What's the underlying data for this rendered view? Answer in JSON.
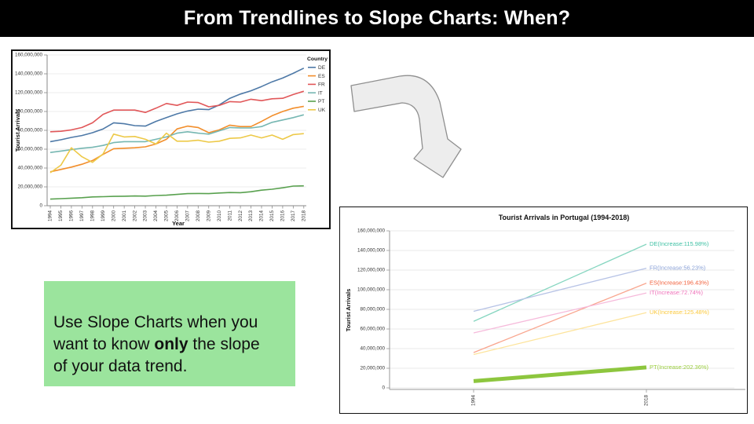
{
  "header": {
    "title": "From Trendlines to Slope Charts: When?",
    "bg_color": "#000000",
    "text_color": "#ffffff"
  },
  "note_box": {
    "text_before": "Use Slope Charts when you\nwant to know ",
    "bold_word": "only",
    "text_after": " the slope\nof your data trend.",
    "bg_color": "#9be49d"
  },
  "arrow": {
    "name": "curved-arrow",
    "fill": "#ededed",
    "stroke": "#8f8f8f"
  },
  "chart_data": [
    {
      "type": "line",
      "title": "",
      "xlabel": "Year",
      "ylabel": "Tourist Arrivals",
      "legend_title": "Country",
      "legend_position": "right",
      "grid": true,
      "ylim": [
        0,
        160000000
      ],
      "ytick_step": 20000000,
      "unit": "millions",
      "x": [
        1994,
        1995,
        1996,
        1997,
        1998,
        1999,
        2000,
        2001,
        2002,
        2003,
        2004,
        2005,
        2006,
        2007,
        2008,
        2009,
        2010,
        2011,
        2012,
        2013,
        2014,
        2015,
        2016,
        2017,
        2018
      ],
      "series": [
        {
          "name": "DE",
          "color": "#4e79a7",
          "values_millions": [
            68,
            70,
            72.5,
            74.5,
            77.5,
            81.5,
            88,
            87,
            85,
            84.5,
            89.5,
            93.5,
            97.5,
            100.5,
            102.5,
            102,
            107,
            114,
            118.5,
            122,
            126.5,
            131.5,
            135.5,
            140.5,
            146
          ]
        },
        {
          "name": "ES",
          "color": "#f28e2b",
          "values_millions": [
            36,
            38.5,
            41,
            44,
            48,
            54.5,
            60.5,
            61,
            61.5,
            62.5,
            65.5,
            70.5,
            81.5,
            84.5,
            83,
            77.5,
            80.5,
            85.5,
            84,
            84,
            89.5,
            95.5,
            100,
            103.5,
            105.5
          ]
        },
        {
          "name": "FR",
          "color": "#e15759",
          "values_millions": [
            78.5,
            79,
            80.5,
            83,
            88,
            97,
            101.5,
            101.5,
            101.5,
            99,
            103.5,
            108.5,
            106.5,
            110,
            109.5,
            105,
            106.5,
            110.5,
            110,
            113,
            111.5,
            113.5,
            114,
            118,
            121.5
          ]
        },
        {
          "name": "IT",
          "color": "#76b7b2",
          "values_millions": [
            56.5,
            58,
            59.5,
            61,
            62,
            64,
            67,
            68,
            68,
            68,
            70.5,
            73,
            77,
            78.5,
            77,
            76,
            79.5,
            83,
            82.5,
            82.5,
            84,
            88.5,
            91,
            93.5,
            96.5
          ]
        },
        {
          "name": "PT",
          "color": "#59a14f",
          "values_millions": [
            7,
            7.5,
            8,
            8.5,
            9.3,
            9.6,
            9.9,
            10.1,
            10.3,
            10.2,
            10.8,
            11.2,
            12,
            12.8,
            13,
            12.8,
            13.5,
            14,
            13.8,
            14.8,
            16.5,
            17.5,
            19,
            20.8,
            21.1
          ]
        },
        {
          "name": "UK",
          "color": "#edc948",
          "values_millions": [
            35,
            43,
            61.5,
            52,
            46,
            55,
            76,
            73,
            73.5,
            70.5,
            65.5,
            77,
            68.5,
            68.5,
            69.5,
            67.5,
            68.5,
            71.5,
            72,
            75,
            72,
            75,
            70.5,
            75.5,
            76.5
          ]
        }
      ]
    },
    {
      "type": "slope",
      "title": "Tourist Arrivals in Portugal (1994-2018)",
      "ylabel": "Tourist Arrivals",
      "grid": true,
      "ylim": [
        0,
        160000000
      ],
      "ytick_step": 20000000,
      "unit": "millions",
      "x": [
        1994,
        2018
      ],
      "series": [
        {
          "name": "DE",
          "label": "DE(Increase:115.98%)",
          "line_color": "#86d6c0",
          "label_color": "#3fc1a4",
          "start_millions": 67.8,
          "end_millions": 146.4
        },
        {
          "name": "FR",
          "label": "FR(Increase:56.23%)",
          "line_color": "#b7c3e6",
          "label_color": "#8ca3d8",
          "start_millions": 78,
          "end_millions": 121.9
        },
        {
          "name": "ES",
          "label": "ES(Increase:196.43%)",
          "line_color": "#f9a68f",
          "label_color": "#f2613c",
          "start_millions": 36,
          "end_millions": 106.7
        },
        {
          "name": "IT",
          "label": "IT(Increase:72.74%)",
          "line_color": "#f6badb",
          "label_color": "#ef72ba",
          "start_millions": 56,
          "end_millions": 96.7
        },
        {
          "name": "UK",
          "label": "UK(Increase:125.48%)",
          "line_color": "#fde49c",
          "label_color": "#fbc93d",
          "start_millions": 34,
          "end_millions": 76.7
        },
        {
          "name": "PT",
          "label": "PT(Increase:202.36%)",
          "line_color": "#8dc63e",
          "label_color": "#9bce3f",
          "start_millions": 6.9,
          "end_millions": 20.9,
          "thick": true
        }
      ]
    }
  ]
}
